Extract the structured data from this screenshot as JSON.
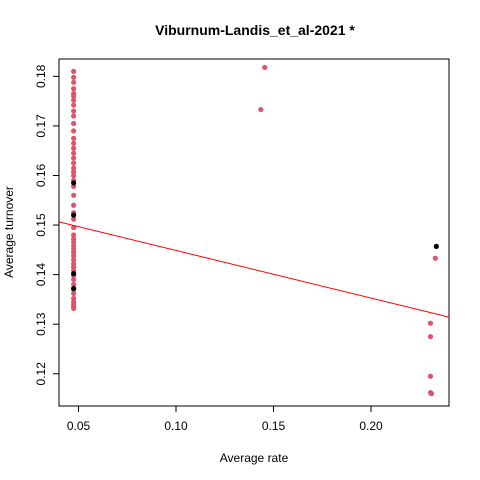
{
  "chart_data": {
    "type": "scatter",
    "title": "Viburnum-Landis_et_al-2021 *",
    "xlabel": "Average rate",
    "ylabel": "Average turnover",
    "xlim": [
      0.04,
      0.24
    ],
    "ylim": [
      0.1135,
      0.1835
    ],
    "x_ticks": [
      {
        "value": 0.05,
        "label": "0.05"
      },
      {
        "value": 0.1,
        "label": "0.10"
      },
      {
        "value": 0.15,
        "label": "0.15"
      },
      {
        "value": 0.2,
        "label": "0.20"
      }
    ],
    "y_ticks": [
      {
        "value": 0.12,
        "label": "0.12"
      },
      {
        "value": 0.13,
        "label": "0.13"
      },
      {
        "value": 0.14,
        "label": "0.14"
      },
      {
        "value": 0.15,
        "label": "0.15"
      },
      {
        "value": 0.16,
        "label": "0.16"
      },
      {
        "value": 0.17,
        "label": "0.17"
      },
      {
        "value": 0.18,
        "label": "0.18"
      }
    ],
    "series": [
      {
        "color": "#DF536B",
        "points": [
          [
            0.0475,
            0.181
          ],
          [
            0.0475,
            0.1798
          ],
          [
            0.0475,
            0.1788
          ],
          [
            0.0475,
            0.1775
          ],
          [
            0.0475,
            0.1765
          ],
          [
            0.0475,
            0.176
          ],
          [
            0.0475,
            0.1752
          ],
          [
            0.0475,
            0.1742
          ],
          [
            0.0475,
            0.173
          ],
          [
            0.0475,
            0.172
          ],
          [
            0.0475,
            0.1705
          ],
          [
            0.0475,
            0.169
          ],
          [
            0.0475,
            0.1675
          ],
          [
            0.0475,
            0.1665
          ],
          [
            0.0475,
            0.1655
          ],
          [
            0.0475,
            0.1645
          ],
          [
            0.0475,
            0.1635
          ],
          [
            0.0475,
            0.1625
          ],
          [
            0.0475,
            0.1615
          ],
          [
            0.0475,
            0.1607
          ],
          [
            0.0475,
            0.16
          ],
          [
            0.0475,
            0.159
          ],
          [
            0.0475,
            0.1578
          ],
          [
            0.0475,
            0.156
          ],
          [
            0.0475,
            0.154
          ],
          [
            0.0475,
            0.1525
          ],
          [
            0.0475,
            0.1512
          ],
          [
            0.0475,
            0.1495
          ],
          [
            0.0475,
            0.148
          ],
          [
            0.0475,
            0.1472
          ],
          [
            0.0475,
            0.1465
          ],
          [
            0.0475,
            0.1458
          ],
          [
            0.0475,
            0.1452
          ],
          [
            0.0475,
            0.1445
          ],
          [
            0.0475,
            0.1438
          ],
          [
            0.0475,
            0.143
          ],
          [
            0.0475,
            0.1422
          ],
          [
            0.0475,
            0.1415
          ],
          [
            0.0475,
            0.1408
          ],
          [
            0.0475,
            0.1398
          ],
          [
            0.0475,
            0.139
          ],
          [
            0.0475,
            0.138
          ],
          [
            0.0475,
            0.137
          ],
          [
            0.0475,
            0.1362
          ],
          [
            0.0475,
            0.1352
          ],
          [
            0.0475,
            0.1345
          ],
          [
            0.0475,
            0.134
          ],
          [
            0.0475,
            0.1335
          ],
          [
            0.0475,
            0.1332
          ],
          [
            0.1435,
            0.1733
          ],
          [
            0.1455,
            0.1818
          ],
          [
            0.233,
            0.1433
          ],
          [
            0.2305,
            0.1302
          ],
          [
            0.2305,
            0.1275
          ],
          [
            0.2305,
            0.1195
          ],
          [
            0.2305,
            0.1162
          ],
          [
            0.231,
            0.116
          ]
        ]
      },
      {
        "color": "#000000",
        "points": [
          [
            0.0475,
            0.1585
          ],
          [
            0.0475,
            0.152
          ],
          [
            0.0475,
            0.1402
          ],
          [
            0.0475,
            0.1372
          ],
          [
            0.2335,
            0.1457
          ]
        ]
      }
    ],
    "trend_line": {
      "color": "#FF0000",
      "x": [
        0.04,
        0.24
      ],
      "y": [
        0.15065,
        0.13142
      ]
    },
    "grid": false,
    "legend": "none"
  }
}
